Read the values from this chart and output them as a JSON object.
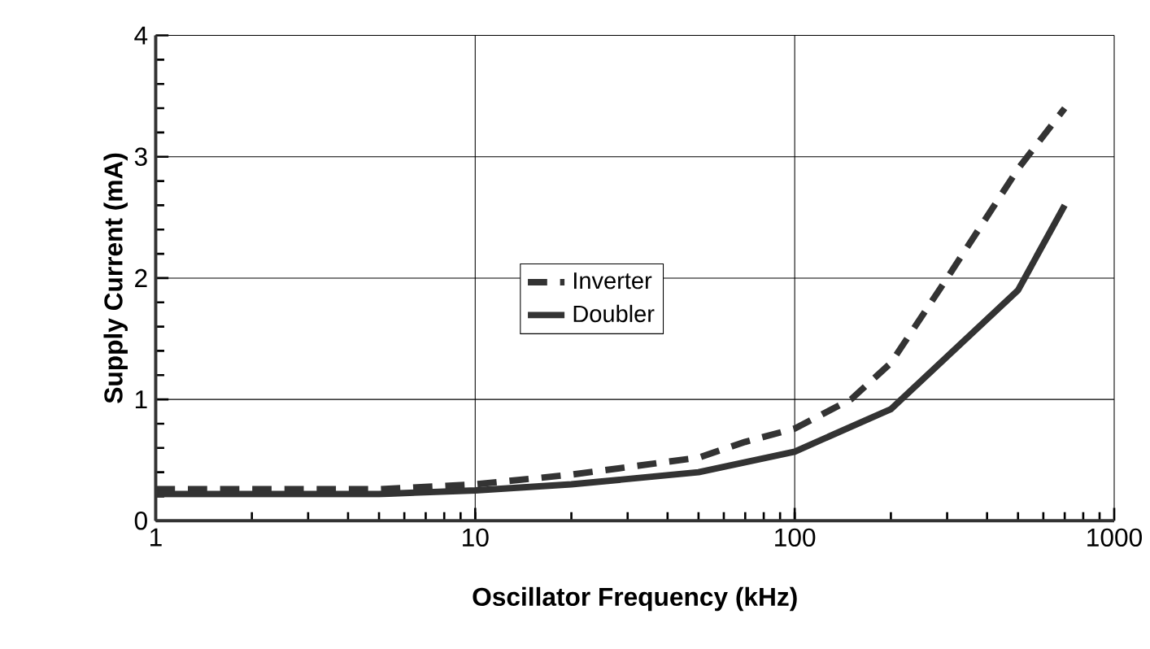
{
  "chart_data": {
    "type": "line",
    "xlabel": "Oscillator Frequency (kHz)",
    "ylabel": "Supply  Current (mA)",
    "log": "x",
    "xlim": [
      1,
      1000
    ],
    "xticks": [
      1,
      10,
      100,
      1000
    ],
    "ylim": [
      0,
      4
    ],
    "yticks": [
      0,
      1,
      2,
      3,
      4
    ],
    "grid": true,
    "legend": "left",
    "series": [
      {
        "name": "Inverter",
        "color": "#333333",
        "line_style": "dashed",
        "x": [
          1,
          5,
          10,
          20,
          50,
          70,
          100,
          150,
          200,
          300,
          500,
          700
        ],
        "values": [
          0.26,
          0.26,
          0.3,
          0.38,
          0.52,
          0.65,
          0.76,
          1.0,
          1.3,
          2.0,
          2.9,
          3.4
        ]
      },
      {
        "name": "Doubler",
        "color": "#333333",
        "line_style": "solid",
        "x": [
          1,
          5,
          10,
          20,
          50,
          100,
          200,
          500,
          700
        ],
        "values": [
          0.22,
          0.22,
          0.25,
          0.3,
          0.4,
          0.57,
          0.92,
          1.9,
          2.6
        ]
      }
    ]
  }
}
